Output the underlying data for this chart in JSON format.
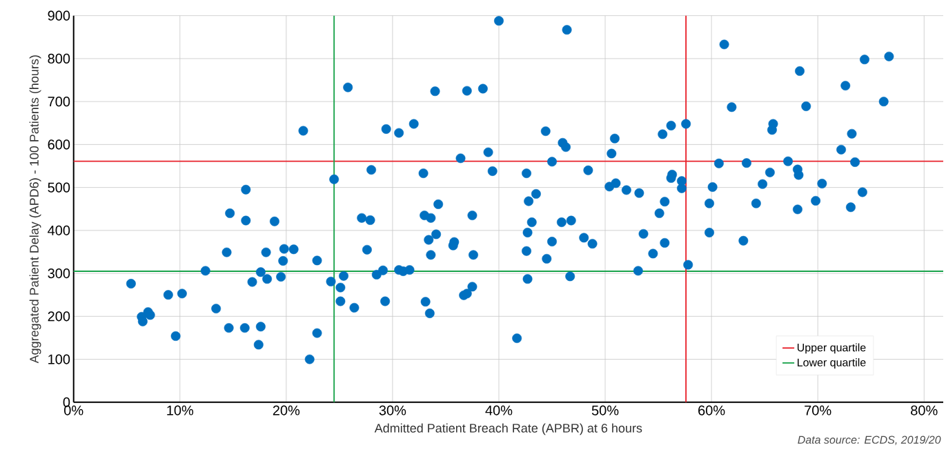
{
  "chart_data": {
    "type": "scatter",
    "xlabel": "Admitted Patient Breach Rate (APBR) at 6 hours",
    "ylabel": "Aggregated Patient Delay (APD6) - 100 Patients (hours)",
    "annotations": [
      "Data source: ECDS, 2019/20"
    ],
    "color": "#0070c0",
    "marker": "circle",
    "grid": true,
    "legend": "bottom right",
    "xlim": [
      0,
      81.8
    ],
    "ylim": [
      0,
      900
    ],
    "xticks": [
      {
        "value": 0,
        "label": "0%"
      },
      {
        "value": 10,
        "label": "10%"
      },
      {
        "value": 20,
        "label": "20%"
      },
      {
        "value": 30,
        "label": "30%"
      },
      {
        "value": 40,
        "label": "40%"
      },
      {
        "value": 50,
        "label": "50%"
      },
      {
        "value": 60,
        "label": "60%"
      },
      {
        "value": 70,
        "label": "70%"
      },
      {
        "value": 80,
        "label": "80%"
      }
    ],
    "yticks": [
      0,
      100,
      200,
      300,
      400,
      500,
      600,
      700,
      800,
      900
    ],
    "ref_lines": [
      {
        "axis": "y",
        "value": 561,
        "label": "Upper quartile",
        "color": "#e8202a"
      },
      {
        "axis": "y",
        "value": 305,
        "label": "Lower quartile",
        "color": "#18a24a"
      },
      {
        "axis": "x",
        "value": 57.6,
        "color": "#e8202a"
      },
      {
        "axis": "x",
        "value": 24.5,
        "color": "#18a24a"
      }
    ],
    "x": [
      5.4,
      6.4,
      6.5,
      7.0,
      7.2,
      8.9,
      9.6,
      10.2,
      12.4,
      13.4,
      14.4,
      14.7,
      14.6,
      16.2,
      16.2,
      16.1,
      16.8,
      17.4,
      17.6,
      17.6,
      18.1,
      18.2,
      18.9,
      19.5,
      19.7,
      19.8,
      20.7,
      21.6,
      22.2,
      22.9,
      22.9,
      24.2,
      24.5,
      25.1,
      25.4,
      25.1,
      25.8,
      26.4,
      27.6,
      27.1,
      27.9,
      28.0,
      29.4,
      28.5,
      29.1,
      29.3,
      30.6,
      30.6,
      31.0,
      31.6,
      32.0,
      32.9,
      33.0,
      33.6,
      33.1,
      33.5,
      33.4,
      33.6,
      34.0,
      34.1,
      34.3,
      35.7,
      35.8,
      36.4,
      36.7,
      37.0,
      37.0,
      37.5,
      37.5,
      37.6,
      38.5,
      39.0,
      39.4,
      40.0,
      41.7,
      42.6,
      42.8,
      42.6,
      42.7,
      42.7,
      43.1,
      43.5,
      44.4,
      45.0,
      44.5,
      45.0,
      46.0,
      46.3,
      45.9,
      46.8,
      46.7,
      46.4,
      48.0,
      48.4,
      48.8,
      50.4,
      51.0,
      50.6,
      50.9,
      52.0,
      53.2,
      53.6,
      53.1,
      54.5,
      55.1,
      55.6,
      55.6,
      55.4,
      56.2,
      56.2,
      56.3,
      57.2,
      57.2,
      57.6,
      57.8,
      59.8,
      60.1,
      59.8,
      60.7,
      61.2,
      61.9,
      63.0,
      63.3,
      64.2,
      64.8,
      65.5,
      65.7,
      65.8,
      67.2,
      68.1,
      68.2,
      68.1,
      68.3,
      68.9,
      69.8,
      70.4,
      72.2,
      72.6,
      73.1,
      73.2,
      73.5,
      74.2,
      74.4,
      76.2,
      76.7
    ],
    "values": [
      276,
      199,
      188,
      210,
      203,
      250,
      154,
      253,
      306,
      218,
      349,
      440,
      173,
      495,
      423,
      173,
      280,
      134,
      303,
      176,
      349,
      287,
      421,
      292,
      329,
      357,
      356,
      632,
      100,
      330,
      161,
      281,
      519,
      267,
      294,
      235,
      733,
      220,
      355,
      429,
      424,
      541,
      636,
      297,
      307,
      235,
      627,
      308,
      305,
      308,
      648,
      533,
      435,
      429,
      234,
      207,
      378,
      343,
      724,
      391,
      461,
      365,
      373,
      568,
      249,
      253,
      725,
      269,
      435,
      343,
      730,
      582,
      538,
      888,
      149,
      533,
      468,
      352,
      395,
      287,
      419,
      485,
      631,
      374,
      334,
      560,
      604,
      594,
      419,
      423,
      293,
      867,
      383,
      540,
      369,
      502,
      510,
      579,
      614,
      494,
      487,
      392,
      306,
      346,
      440,
      467,
      371,
      624,
      644,
      522,
      530,
      498,
      515,
      648,
      320,
      463,
      501,
      395,
      556,
      833,
      687,
      376,
      557,
      463,
      508,
      535,
      634,
      648,
      561,
      542,
      529,
      449,
      771,
      689,
      469,
      509,
      588,
      737,
      454,
      625,
      559,
      489,
      798,
      700,
      805
    ]
  }
}
